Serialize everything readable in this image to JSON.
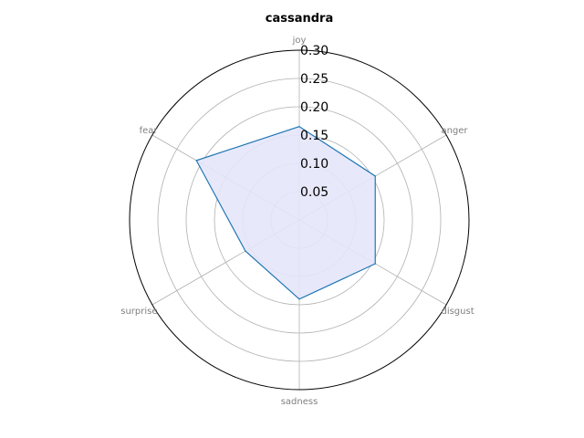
{
  "chart_data": {
    "type": "radar",
    "title": "cassandra",
    "categories": [
      "joy",
      "anger",
      "disgust",
      "sadness",
      "surprise",
      "fear"
    ],
    "series": [
      {
        "values": [
          0.165,
          0.155,
          0.155,
          0.14,
          0.11,
          0.21
        ]
      }
    ],
    "rlim": [
      0,
      0.3
    ],
    "r_ticks": [
      "0.05",
      "0.10",
      "0.15",
      "0.20",
      "0.25",
      "0.30"
    ],
    "grid": true,
    "colors": {
      "line": "#1f77b4",
      "fill": "#e5e5fb",
      "grid": "#b0b0b0",
      "frame": "#000000"
    }
  }
}
